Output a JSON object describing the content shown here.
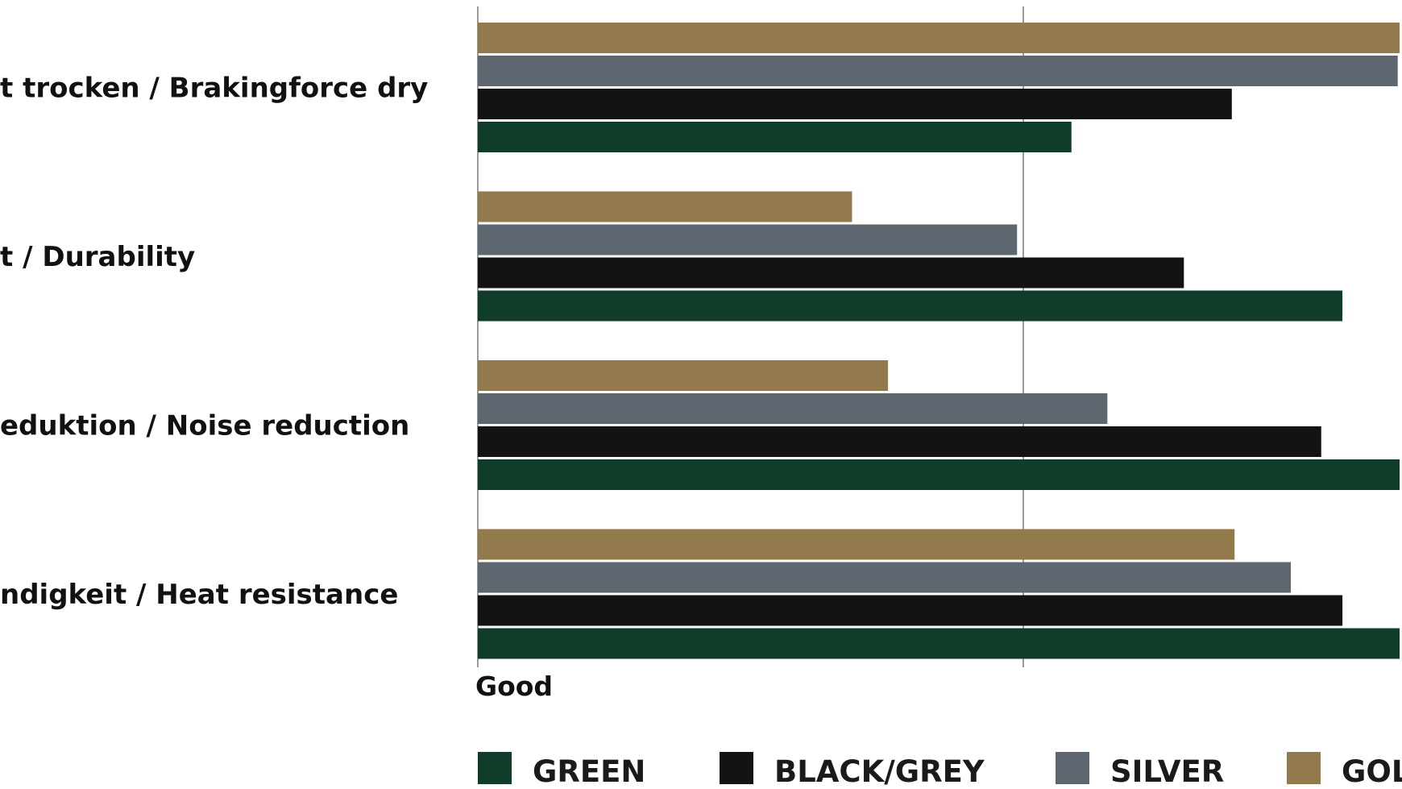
{
  "chart_data": {
    "type": "bar",
    "orientation": "horizontal",
    "categories": [
      "t trocken / Brakingforce dry",
      "t / Durability",
      "eduktion / Noise reduction",
      "ndigkeit / Heat resistance"
    ],
    "series": [
      {
        "name": "GOL",
        "color": "#937a4c",
        "values": [
          100,
          40.6,
          44.5,
          82.1
        ]
      },
      {
        "name": "SILVER",
        "color": "#5e6670",
        "values": [
          99.8,
          58.5,
          68.3,
          88.2
        ]
      },
      {
        "name": "BLACK/GREY",
        "color": "#131313",
        "values": [
          81.8,
          76.6,
          91.5,
          93.8
        ]
      },
      {
        "name": "GREEN",
        "color": "#0f3d2a",
        "values": [
          64.4,
          93.8,
          100,
          100
        ]
      }
    ],
    "legend_order": [
      "GREEN",
      "BLACK/GREY",
      "SILVER",
      "GOL"
    ],
    "x_tick_labels": [
      "Good"
    ],
    "xlim": [
      0,
      100
    ],
    "grid": true,
    "legend_position": "bottom"
  }
}
